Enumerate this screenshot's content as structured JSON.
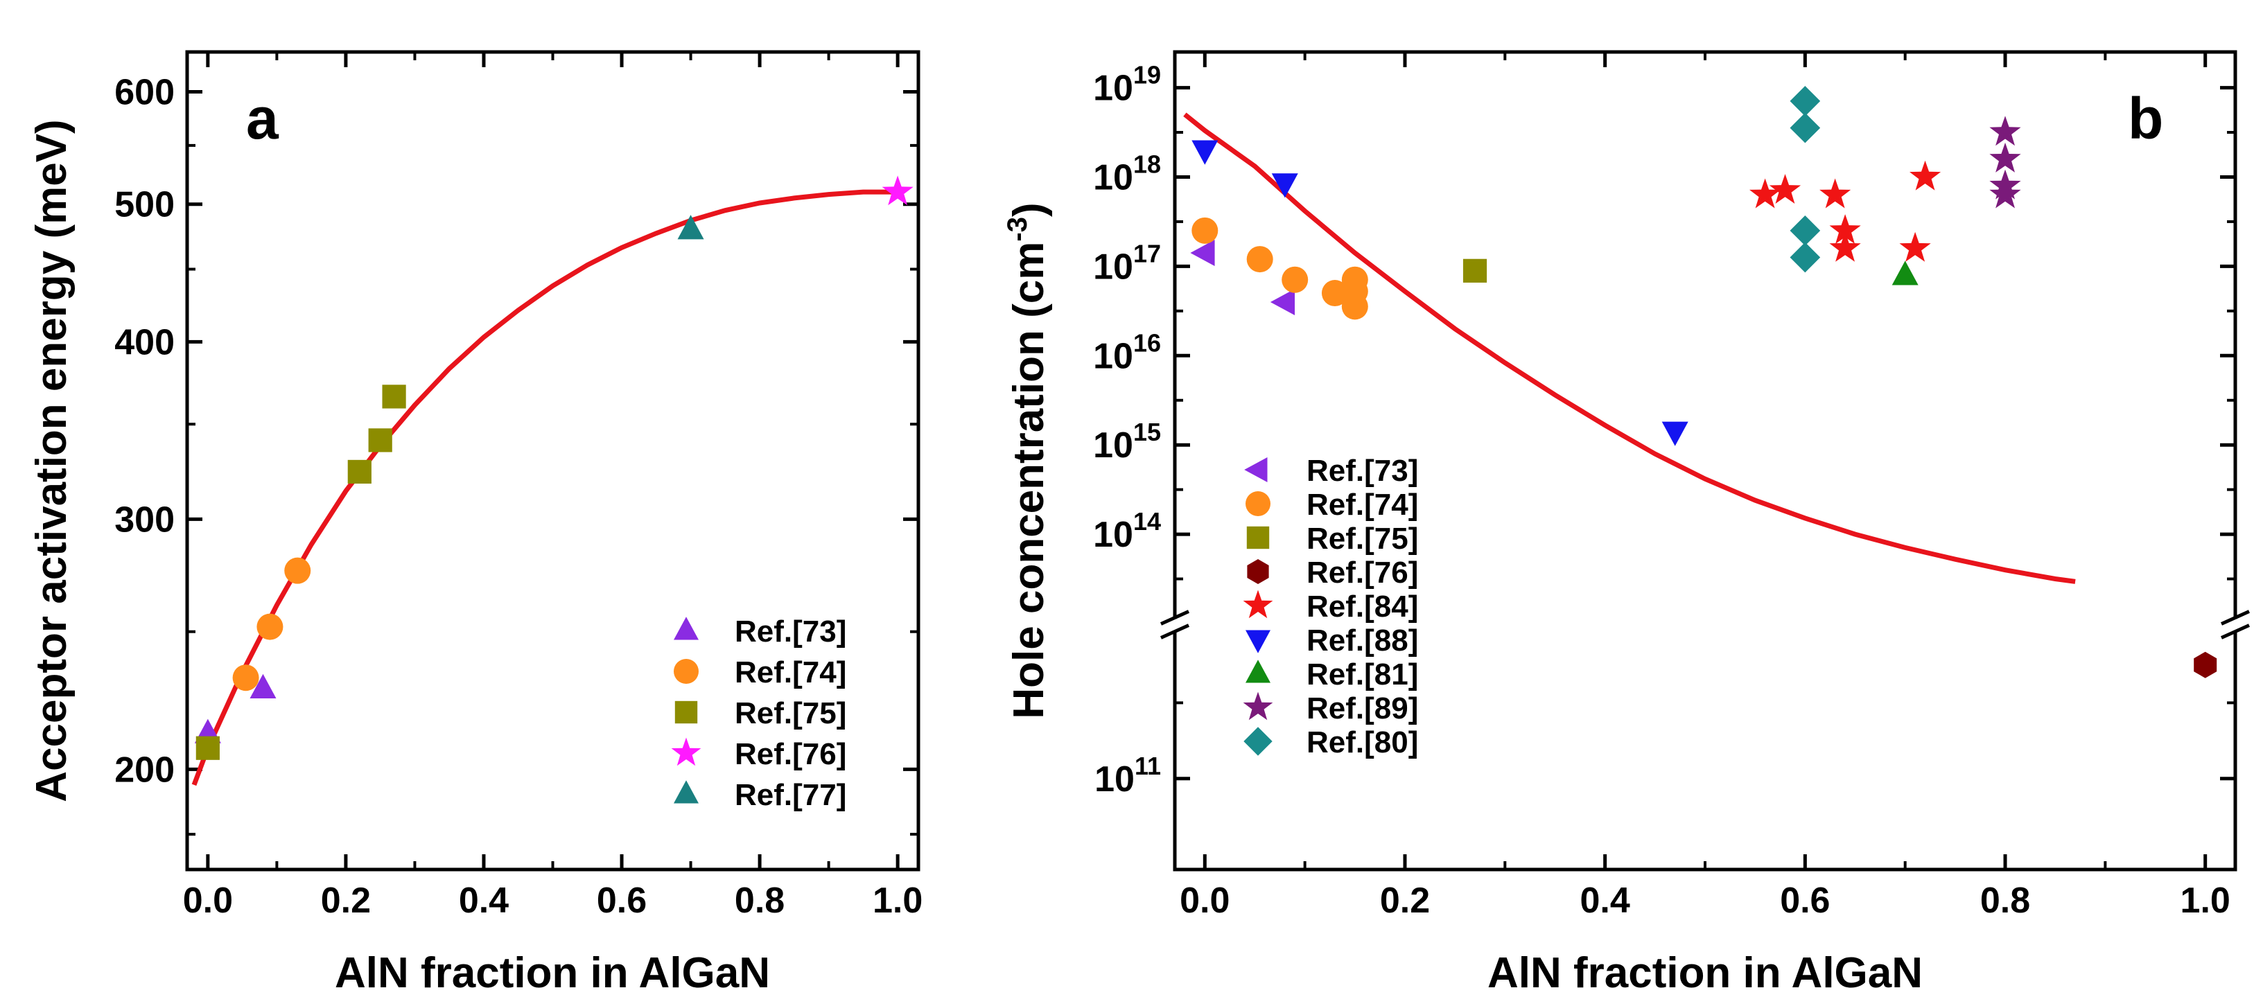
{
  "chart_data": [
    {
      "type": "scatter",
      "panel_label": "a",
      "title": "",
      "xlabel": "AlN fraction in AlGaN",
      "ylabel": "Acceptor activation energy (meV)",
      "xlim": [
        -0.03,
        1.03
      ],
      "ylim": [
        170,
        640
      ],
      "yscale": "log",
      "xticks": [
        "0.0",
        "0.2",
        "0.4",
        "0.6",
        "0.8",
        "1.0"
      ],
      "xtick_values": [
        0,
        0.2,
        0.4,
        0.6,
        0.8,
        1.0
      ],
      "yticks": [
        "200",
        "300",
        "400",
        "500",
        "600"
      ],
      "ytick_values": [
        200,
        300,
        400,
        500,
        600
      ],
      "fit_curve": {
        "color": "#e8141c",
        "description": "quadratic fit",
        "x": [
          -0.02,
          0.0,
          0.05,
          0.1,
          0.15,
          0.2,
          0.25,
          0.3,
          0.35,
          0.4,
          0.45,
          0.5,
          0.55,
          0.6,
          0.65,
          0.7,
          0.75,
          0.8,
          0.85,
          0.9,
          0.95,
          1.0
        ],
        "y": [
          195,
          207,
          234,
          261,
          288,
          314,
          338,
          361,
          383,
          403,
          421,
          438,
          453,
          466,
          477,
          487,
          495,
          501,
          505,
          508,
          510,
          510
        ]
      },
      "legend_position": "bottom-right",
      "series": [
        {
          "name": "Ref.[73]",
          "marker": "triangle-up",
          "color": "#8a2be2",
          "x": [
            0.0,
            0.08
          ],
          "y": [
            212,
            228
          ]
        },
        {
          "name": "Ref.[74]",
          "marker": "circle",
          "color": "#ff8c1a",
          "x": [
            0.055,
            0.09,
            0.13
          ],
          "y": [
            232,
            252,
            276
          ]
        },
        {
          "name": "Ref.[75]",
          "marker": "square",
          "color": "#8c8c00",
          "x": [
            0.0,
            0.22,
            0.25,
            0.27
          ],
          "y": [
            207,
            324,
            341,
            366
          ]
        },
        {
          "name": "Ref.[76]",
          "marker": "star",
          "color": "#ff1aff",
          "x": [
            1.0
          ],
          "y": [
            510
          ]
        },
        {
          "name": "Ref.[77]",
          "marker": "triangle-up",
          "color": "#1a8080",
          "x": [
            0.7
          ],
          "y": [
            480
          ]
        }
      ]
    },
    {
      "type": "scatter",
      "panel_label": "b",
      "title": "",
      "xlabel": "AlN fraction in AlGaN",
      "ylabel": "Hole concentration (cm",
      "ylabel_superscript": "-3",
      "ylabel_suffix": ")",
      "xlim": [
        -0.03,
        1.03
      ],
      "yscale": "log (broken axis)",
      "upper_ylim_exponent": [
        13,
        19.4
      ],
      "lower_ylim_exponent": [
        10.4,
        12
      ],
      "xticks": [
        "0.0",
        "0.2",
        "0.4",
        "0.6",
        "0.8",
        "1.0"
      ],
      "xtick_values": [
        0,
        0.2,
        0.4,
        0.6,
        0.8,
        1.0
      ],
      "yticks": [
        {
          "base": "10",
          "exp": "19",
          "value_exponent": 19
        },
        {
          "base": "10",
          "exp": "18",
          "value_exponent": 18
        },
        {
          "base": "10",
          "exp": "17",
          "value_exponent": 17
        },
        {
          "base": "10",
          "exp": "16",
          "value_exponent": 16
        },
        {
          "base": "10",
          "exp": "15",
          "value_exponent": 15
        },
        {
          "base": "10",
          "exp": "14",
          "value_exponent": 14
        },
        {
          "base": "10",
          "exp": "11",
          "value_exponent": 11
        }
      ],
      "fit_curve": {
        "color": "#e8141c",
        "x": [
          -0.02,
          0.0,
          0.05,
          0.1,
          0.15,
          0.2,
          0.25,
          0.3,
          0.35,
          0.4,
          0.45,
          0.5,
          0.55,
          0.6,
          0.65,
          0.7,
          0.75,
          0.8,
          0.85,
          0.87
        ],
        "y_exponent": [
          18.7,
          18.52,
          18.12,
          17.62,
          17.15,
          16.72,
          16.3,
          15.92,
          15.56,
          15.22,
          14.9,
          14.62,
          14.38,
          14.18,
          14.0,
          13.85,
          13.72,
          13.6,
          13.5,
          13.47
        ]
      },
      "legend_position": "bottom-left",
      "series": [
        {
          "name": "Ref.[73]",
          "marker": "triangle-left",
          "color": "#8a2be2",
          "x": [
            0.0,
            0.08
          ],
          "y_exponent": [
            17.15,
            16.6
          ]
        },
        {
          "name": "Ref.[74]",
          "marker": "circle",
          "color": "#ff8c1a",
          "x": [
            0.0,
            0.055,
            0.09,
            0.13,
            0.15,
            0.15,
            0.15
          ],
          "y_exponent": [
            17.4,
            17.08,
            16.85,
            16.7,
            16.55,
            16.72,
            16.85
          ]
        },
        {
          "name": "Ref.[75]",
          "marker": "square",
          "color": "#8c8c00",
          "x": [
            0.27
          ],
          "y_exponent": [
            16.95
          ]
        },
        {
          "name": "Ref.[76]",
          "marker": "hexagon",
          "color": "#800000",
          "x": [
            1.0
          ],
          "y_exponent": [
            11.75
          ]
        },
        {
          "name": "Ref.[84]",
          "marker": "star",
          "color": "#f01414",
          "x": [
            0.56,
            0.58,
            0.63,
            0.64,
            0.64,
            0.71,
            0.72
          ],
          "y_exponent": [
            17.8,
            17.85,
            17.8,
            17.4,
            17.2,
            17.2,
            18.0
          ]
        },
        {
          "name": "Ref.[88]",
          "marker": "triangle-down",
          "color": "#1414f0",
          "x": [
            0.0,
            0.08,
            0.47
          ],
          "y_exponent": [
            18.3,
            17.93,
            15.15
          ]
        },
        {
          "name": "Ref.[81]",
          "marker": "triangle-up",
          "color": "#128c12",
          "x": [
            0.7
          ],
          "y_exponent": [
            16.9
          ]
        },
        {
          "name": "Ref.[89]",
          "marker": "star",
          "color": "#7a1a7a",
          "x": [
            0.8,
            0.8,
            0.8,
            0.8
          ],
          "y_exponent": [
            18.5,
            18.2,
            17.9,
            17.8
          ]
        },
        {
          "name": "Ref.[80]",
          "marker": "diamond",
          "color": "#1a8c8c",
          "x": [
            0.6,
            0.6,
            0.6,
            0.6
          ],
          "y_exponent": [
            18.85,
            18.55,
            17.4,
            17.1
          ]
        }
      ]
    }
  ]
}
